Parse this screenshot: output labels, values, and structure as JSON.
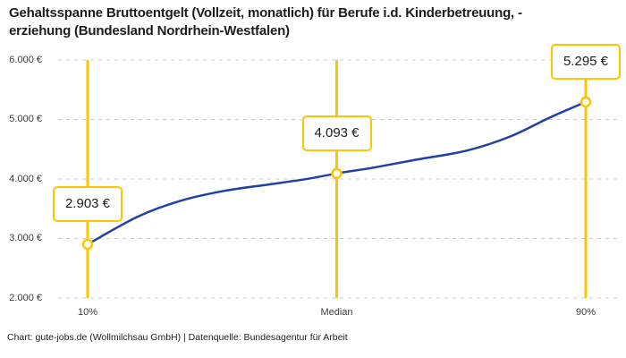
{
  "header": {
    "title_line1": "Gehaltsspanne Bruttoentgelt (Vollzeit, monatlich) für Berufe i.d. Kinderbetreuung, -",
    "title_line2": "erziehung (Bundesland Nordrhein-Westfalen)"
  },
  "footer": {
    "credit": "Chart: gute-jobs.de (Wollmilchsau GmbH) | Datenquelle: Bundesagentur für Arbeit"
  },
  "chart_data": {
    "type": "line",
    "title": "Gehaltsspanne Bruttoentgelt (Vollzeit, monatlich) für Berufe i.d. Kinderbetreuung, -erziehung (Bundesland Nordrhein-Westfalen)",
    "xlabel": "",
    "ylabel": "",
    "ylim": [
      2000,
      6000
    ],
    "yticks": [
      2000,
      3000,
      4000,
      5000,
      6000
    ],
    "ytick_labels": [
      "2.000 €",
      "3.000 €",
      "4.000 €",
      "5.000 €",
      "6.000 €"
    ],
    "xtick_labels": [
      "10%",
      "Median",
      "90%"
    ],
    "grid": "horizontal-dashed",
    "legend": "none",
    "points": [
      {
        "label": "10%",
        "percentile": 10,
        "value": 2903,
        "value_label": "2.903 €"
      },
      {
        "label": "Median",
        "percentile": 50,
        "value": 4093,
        "value_label": "4.093 €"
      },
      {
        "label": "90%",
        "percentile": 90,
        "value": 5295,
        "value_label": "5.295 €"
      }
    ],
    "curve_samples": [
      [
        10,
        2903
      ],
      [
        18,
        3365
      ],
      [
        25,
        3636
      ],
      [
        32,
        3802
      ],
      [
        39,
        3907
      ],
      [
        45,
        3997
      ],
      [
        50,
        4093
      ],
      [
        56,
        4193
      ],
      [
        63,
        4329
      ],
      [
        71,
        4479
      ],
      [
        78,
        4720
      ],
      [
        84,
        5021
      ],
      [
        90,
        5295
      ]
    ],
    "colors": {
      "accent_yellow": "#FDC500",
      "line_blue": "#2140A5",
      "grid": "#CBCBCB",
      "text": "#1D1D1D",
      "tick_text": "#3B3B3B"
    }
  }
}
